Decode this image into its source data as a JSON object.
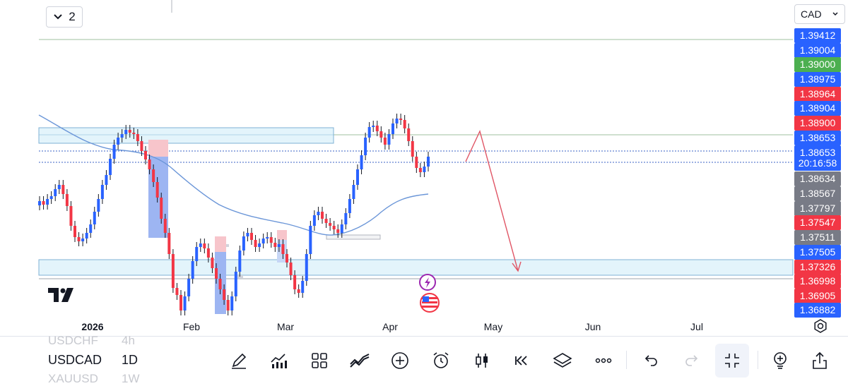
{
  "toolbar": {
    "layout_count": "2",
    "currency": "CAD"
  },
  "price_labels": [
    {
      "text": "1.39412",
      "color": "#2962ff"
    },
    {
      "text": "1.39004",
      "color": "#2962ff"
    },
    {
      "text": "1.39000",
      "color": "#4caf50"
    },
    {
      "text": "1.38975",
      "color": "#2962ff"
    },
    {
      "text": "1.38964",
      "color": "#f23645"
    },
    {
      "text": "1.38904",
      "color": "#2962ff"
    },
    {
      "text": "1.38900",
      "color": "#f23645"
    },
    {
      "text": "1.38653",
      "color": "#2962ff"
    },
    {
      "text": "1.38653",
      "color": "#2962ff"
    },
    {
      "text": "20:16:58",
      "color": "#2962ff"
    },
    {
      "text": "1.38634",
      "color": "#787b86"
    },
    {
      "text": "1.38567",
      "color": "#787b86"
    },
    {
      "text": "1.37797",
      "color": "#787b86"
    },
    {
      "text": "1.37547",
      "color": "#f23645"
    },
    {
      "text": "1.37511",
      "color": "#787b86"
    },
    {
      "text": "1.37505",
      "color": "#2962ff"
    },
    {
      "text": "1.37326",
      "color": "#f23645"
    },
    {
      "text": "1.36998",
      "color": "#f23645"
    },
    {
      "text": "1.36905",
      "color": "#f23645"
    },
    {
      "text": "1.36882",
      "color": "#2962ff"
    }
  ],
  "time_axis": [
    "2026",
    "Feb",
    "Mar",
    "Apr",
    "May",
    "Jun",
    "Jul"
  ],
  "symbols": {
    "ghost_top": "USDCHF",
    "ghost_top_tf": "4h",
    "main": "USDCAD",
    "main_tf": "1D",
    "ghost_bottom": "XAUUSD",
    "ghost_bottom_tf": "1W"
  },
  "tools": [
    "pencil-icon",
    "indicators-icon",
    "grid-icon",
    "compare-icon",
    "plus-circle-icon",
    "alarm-icon",
    "candles-icon",
    "replay-icon",
    "layers-icon",
    "more-icon",
    "undo-icon",
    "redo-icon",
    "collapse-icon",
    "lightbulb-icon",
    "share-icon"
  ],
  "colors": {
    "up": "#2962ff",
    "down": "#f23645",
    "zone_fill": "#e3f4fb",
    "zone_border": "#5b9bd5",
    "ma": "#5b8fd9",
    "arrow": "#e05565"
  }
}
